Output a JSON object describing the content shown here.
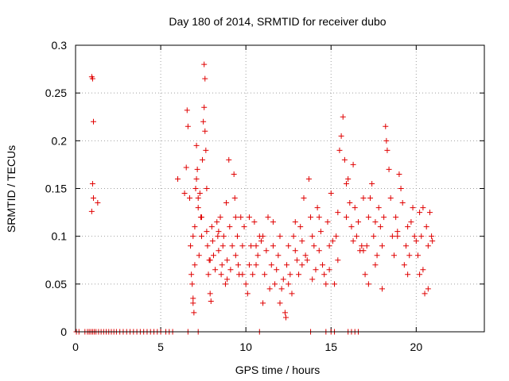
{
  "chart_data": {
    "type": "scatter",
    "title": "Day 180 of 2014, SRMTID for receiver dubo",
    "xlabel": "GPS time / hours",
    "ylabel": "SRMTID / TECUs",
    "xlim": [
      0,
      24
    ],
    "ylim": [
      0,
      0.3
    ],
    "xticks": [
      0,
      5,
      10,
      15,
      20
    ],
    "yticks": [
      0,
      0.05,
      0.1,
      0.15,
      0.2,
      0.25,
      0.3
    ],
    "xtick_labels": [
      "0",
      "5",
      "10",
      "15",
      "20"
    ],
    "ytick_labels": [
      "0",
      "0.05",
      "0.1",
      "0.15",
      "0.2",
      "0.25",
      "0.3"
    ],
    "grid": true,
    "marker": "+",
    "series": [
      {
        "name": "SRMTID",
        "color": "#e00000",
        "points": [
          [
            0.05,
            0
          ],
          [
            0.2,
            0
          ],
          [
            0.55,
            0
          ],
          [
            0.7,
            0
          ],
          [
            0.8,
            0
          ],
          [
            0.9,
            0
          ],
          [
            1.0,
            0
          ],
          [
            1.1,
            0
          ],
          [
            1.2,
            0
          ],
          [
            1.35,
            0
          ],
          [
            1.5,
            0
          ],
          [
            1.65,
            0
          ],
          [
            1.8,
            0
          ],
          [
            1.95,
            0
          ],
          [
            2.1,
            0
          ],
          [
            2.25,
            0
          ],
          [
            2.4,
            0
          ],
          [
            2.6,
            0
          ],
          [
            2.8,
            0
          ],
          [
            3.0,
            0
          ],
          [
            3.2,
            0
          ],
          [
            3.4,
            0
          ],
          [
            3.6,
            0
          ],
          [
            3.8,
            0
          ],
          [
            4.0,
            0
          ],
          [
            4.2,
            0
          ],
          [
            4.4,
            0
          ],
          [
            4.6,
            0
          ],
          [
            4.8,
            0
          ],
          [
            5.0,
            0
          ],
          [
            5.3,
            0
          ],
          [
            5.5,
            0
          ],
          [
            5.7,
            0
          ],
          [
            6.6,
            0
          ],
          [
            7.2,
            0
          ],
          [
            10.8,
            0
          ],
          [
            13.8,
            0
          ],
          [
            14.7,
            0
          ],
          [
            15.0,
            0
          ],
          [
            15.2,
            0
          ],
          [
            16.0,
            0
          ],
          [
            16.2,
            0
          ],
          [
            16.4,
            0
          ],
          [
            16.6,
            0
          ],
          [
            0.95,
            0.267
          ],
          [
            1.0,
            0.265
          ],
          [
            1.05,
            0.22
          ],
          [
            1.0,
            0.155
          ],
          [
            1.05,
            0.14
          ],
          [
            0.95,
            0.126
          ],
          [
            1.3,
            0.135
          ],
          [
            6.0,
            0.16
          ],
          [
            6.4,
            0.145
          ],
          [
            6.5,
            0.172
          ],
          [
            6.55,
            0.232
          ],
          [
            6.6,
            0.215
          ],
          [
            6.7,
            0.14
          ],
          [
            6.75,
            0.09
          ],
          [
            6.8,
            0.06
          ],
          [
            6.85,
            0.05
          ],
          [
            6.9,
            0.035
          ],
          [
            6.9,
            0.03
          ],
          [
            6.95,
            0.02
          ],
          [
            7.0,
            0.11
          ],
          [
            7.05,
            0.15
          ],
          [
            7.1,
            0.16
          ],
          [
            7.1,
            0.195
          ],
          [
            7.15,
            0.17
          ],
          [
            7.2,
            0.13
          ],
          [
            7.2,
            0.14
          ],
          [
            7.25,
            0.08
          ],
          [
            7.3,
            0.145
          ],
          [
            7.35,
            0.12
          ],
          [
            7.4,
            0.1
          ],
          [
            7.45,
            0.18
          ],
          [
            7.5,
            0.22
          ],
          [
            7.55,
            0.235
          ],
          [
            7.55,
            0.28
          ],
          [
            7.6,
            0.265
          ],
          [
            7.6,
            0.21
          ],
          [
            7.65,
            0.19
          ],
          [
            7.7,
            0.15
          ],
          [
            7.7,
            0.105
          ],
          [
            7.75,
            0.09
          ],
          [
            7.8,
            0.06
          ],
          [
            7.85,
            0.075
          ],
          [
            7.9,
            0.04
          ],
          [
            7.95,
            0.032
          ],
          [
            8.0,
            0.11
          ],
          [
            8.05,
            0.095
          ],
          [
            8.1,
            0.08
          ],
          [
            8.2,
            0.065
          ],
          [
            8.3,
            0.115
          ],
          [
            8.35,
            0.1
          ],
          [
            8.4,
            0.085
          ],
          [
            8.5,
            0.12
          ],
          [
            8.55,
            0.06
          ],
          [
            8.6,
            0.07
          ],
          [
            8.65,
            0.09
          ],
          [
            8.7,
            0.1
          ],
          [
            8.8,
            0.05
          ],
          [
            8.85,
            0.135
          ],
          [
            8.9,
            0.075
          ],
          [
            9.0,
            0.18
          ],
          [
            9.05,
            0.11
          ],
          [
            9.1,
            0.065
          ],
          [
            9.2,
            0.09
          ],
          [
            9.3,
            0.165
          ],
          [
            9.35,
            0.14
          ],
          [
            9.4,
            0.12
          ],
          [
            9.5,
            0.1
          ],
          [
            9.55,
            0.07
          ],
          [
            9.6,
            0.06
          ],
          [
            9.7,
            0.12
          ],
          [
            9.8,
            0.09
          ],
          [
            9.9,
            0.11
          ],
          [
            10.0,
            0.05
          ],
          [
            10.1,
            0.04
          ],
          [
            10.2,
            0.07
          ],
          [
            10.3,
            0.09
          ],
          [
            10.4,
            0.06
          ],
          [
            10.5,
            0.115
          ],
          [
            10.6,
            0.07
          ],
          [
            10.7,
            0.08
          ],
          [
            10.8,
            0.1
          ],
          [
            10.9,
            0.095
          ],
          [
            11.0,
            0.03
          ],
          [
            11.1,
            0.06
          ],
          [
            11.2,
            0.085
          ],
          [
            11.3,
            0.12
          ],
          [
            11.4,
            0.045
          ],
          [
            11.5,
            0.07
          ],
          [
            11.6,
            0.09
          ],
          [
            11.7,
            0.05
          ],
          [
            11.8,
            0.065
          ],
          [
            11.9,
            0.08
          ],
          [
            12.0,
            0.03
          ],
          [
            12.1,
            0.045
          ],
          [
            12.2,
            0.055
          ],
          [
            12.3,
            0.02
          ],
          [
            12.35,
            0.015
          ],
          [
            12.4,
            0.07
          ],
          [
            12.5,
            0.09
          ],
          [
            12.6,
            0.06
          ],
          [
            12.7,
            0.04
          ],
          [
            12.8,
            0.1
          ],
          [
            12.9,
            0.085
          ],
          [
            13.0,
            0.075
          ],
          [
            13.1,
            0.06
          ],
          [
            13.2,
            0.11
          ],
          [
            13.3,
            0.095
          ],
          [
            13.4,
            0.14
          ],
          [
            13.5,
            0.08
          ],
          [
            13.6,
            0.075
          ],
          [
            13.7,
            0.16
          ],
          [
            13.8,
            0.12
          ],
          [
            13.9,
            0.1
          ],
          [
            14.0,
            0.09
          ],
          [
            14.1,
            0.065
          ],
          [
            14.2,
            0.13
          ],
          [
            14.3,
            0.085
          ],
          [
            14.4,
            0.105
          ],
          [
            14.5,
            0.07
          ],
          [
            14.6,
            0.06
          ],
          [
            14.7,
            0.05
          ],
          [
            14.8,
            0.115
          ],
          [
            14.9,
            0.09
          ],
          [
            15.0,
            0.145
          ],
          [
            15.1,
            0.095
          ],
          [
            15.2,
            0.05
          ],
          [
            15.3,
            0.1
          ],
          [
            15.4,
            0.125
          ],
          [
            15.5,
            0.19
          ],
          [
            15.6,
            0.205
          ],
          [
            15.7,
            0.225
          ],
          [
            15.8,
            0.18
          ],
          [
            15.9,
            0.155
          ],
          [
            16.0,
            0.16
          ],
          [
            16.1,
            0.135
          ],
          [
            16.2,
            0.11
          ],
          [
            16.3,
            0.175
          ],
          [
            16.4,
            0.13
          ],
          [
            16.5,
            0.1
          ],
          [
            16.6,
            0.115
          ],
          [
            16.7,
            0.085
          ],
          [
            16.8,
            0.09
          ],
          [
            16.9,
            0.14
          ],
          [
            17.0,
            0.06
          ],
          [
            17.1,
            0.09
          ],
          [
            17.2,
            0.12
          ],
          [
            17.3,
            0.14
          ],
          [
            17.4,
            0.155
          ],
          [
            17.5,
            0.1
          ],
          [
            17.6,
            0.07
          ],
          [
            17.7,
            0.08
          ],
          [
            17.8,
            0.13
          ],
          [
            17.9,
            0.11
          ],
          [
            18.0,
            0.09
          ],
          [
            18.1,
            0.12
          ],
          [
            18.2,
            0.215
          ],
          [
            18.25,
            0.2
          ],
          [
            18.3,
            0.19
          ],
          [
            18.4,
            0.17
          ],
          [
            18.5,
            0.14
          ],
          [
            18.6,
            0.1
          ],
          [
            18.7,
            0.08
          ],
          [
            18.8,
            0.12
          ],
          [
            18.9,
            0.1
          ],
          [
            19.0,
            0.165
          ],
          [
            19.1,
            0.15
          ],
          [
            19.2,
            0.135
          ],
          [
            19.3,
            0.07
          ],
          [
            19.4,
            0.09
          ],
          [
            19.5,
            0.11
          ],
          [
            19.6,
            0.08
          ],
          [
            19.7,
            0.115
          ],
          [
            19.8,
            0.13
          ],
          [
            19.9,
            0.1
          ],
          [
            20.0,
            0.095
          ],
          [
            20.1,
            0.08
          ],
          [
            20.2,
            0.06
          ],
          [
            20.3,
            0.1
          ],
          [
            20.4,
            0.065
          ],
          [
            20.5,
            0.04
          ],
          [
            20.6,
            0.11
          ],
          [
            20.7,
            0.09
          ],
          [
            20.8,
            0.125
          ],
          [
            20.9,
            0.1
          ],
          [
            20.95,
            0.095
          ],
          [
            20.7,
            0.045
          ],
          [
            20.4,
            0.13
          ],
          [
            20.2,
            0.125
          ],
          [
            19.5,
            0.06
          ],
          [
            18.9,
            0.105
          ],
          [
            18.0,
            0.045
          ],
          [
            17.6,
            0.115
          ],
          [
            17.2,
            0.05
          ],
          [
            16.9,
            0.085
          ],
          [
            16.3,
            0.095
          ],
          [
            15.9,
            0.12
          ],
          [
            15.4,
            0.075
          ],
          [
            14.9,
            0.065
          ],
          [
            14.3,
            0.12
          ],
          [
            13.9,
            0.055
          ],
          [
            13.3,
            0.07
          ],
          [
            12.9,
            0.115
          ],
          [
            12.5,
            0.05
          ],
          [
            12.0,
            0.1
          ],
          [
            11.6,
            0.115
          ],
          [
            11.0,
            0.1
          ],
          [
            10.6,
            0.09
          ],
          [
            10.2,
            0.12
          ],
          [
            9.8,
            0.06
          ],
          [
            9.4,
            0.08
          ],
          [
            8.9,
            0.055
          ],
          [
            8.4,
            0.105
          ],
          [
            7.9,
            0.075
          ],
          [
            7.4,
            0.12
          ],
          [
            7.0,
            0.07
          ],
          [
            6.9,
            0.1
          ]
        ]
      }
    ]
  }
}
